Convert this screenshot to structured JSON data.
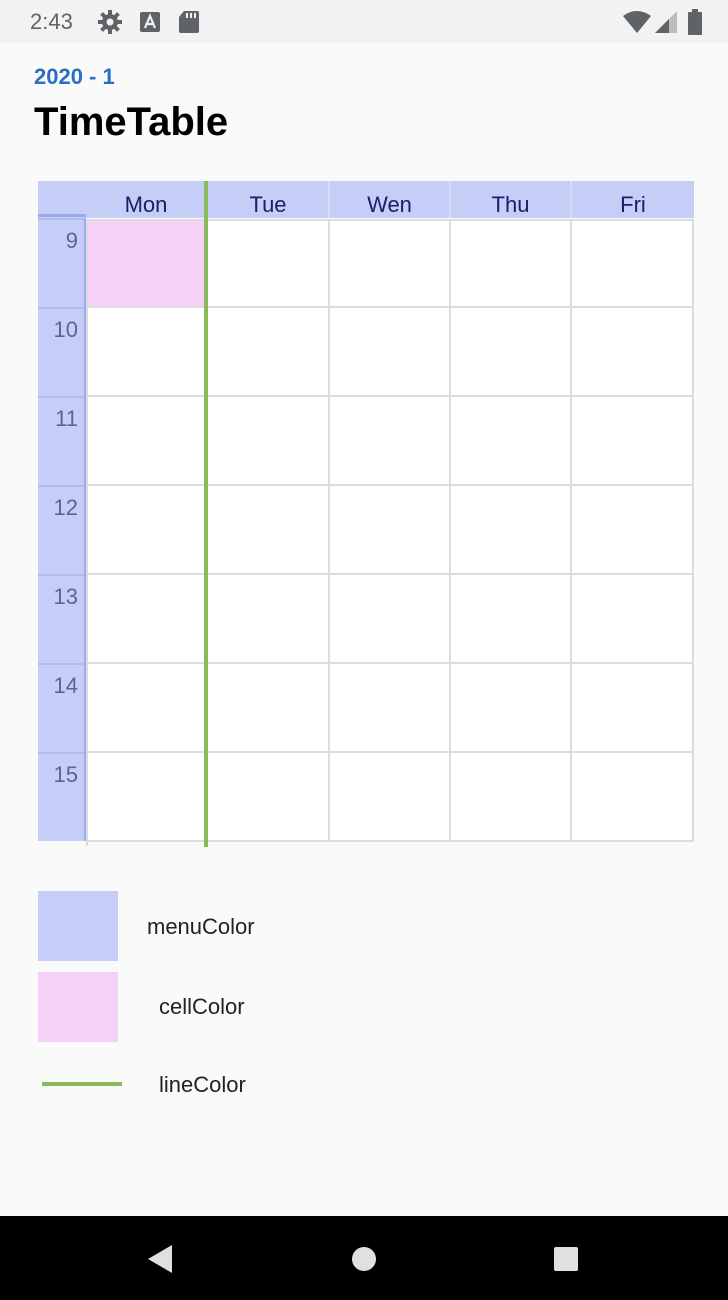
{
  "status_bar": {
    "time": "2:43",
    "left_icons": [
      "gear-icon",
      "text-a-icon",
      "sd-card-icon"
    ],
    "right_icons": [
      "wifi-icon",
      "cell-signal-icon",
      "battery-icon"
    ]
  },
  "header": {
    "semester": "2020 - 1",
    "title": "TimeTable"
  },
  "timetable": {
    "days": [
      "Mon",
      "Tue",
      "Wen",
      "Thu",
      "Fri"
    ],
    "hours": [
      "9",
      "10",
      "11",
      "12",
      "13",
      "14",
      "15"
    ],
    "filled_cells": [
      {
        "day": "Mon",
        "hour": "9"
      }
    ],
    "current_line_day": "Mon"
  },
  "legend": {
    "items": [
      {
        "label": "menuColor",
        "type": "swatch"
      },
      {
        "label": "cellColor",
        "type": "swatch"
      },
      {
        "label": "lineColor",
        "type": "line"
      }
    ]
  },
  "colors": {
    "menu": "#c5cef7",
    "cell": "#f5d1f8",
    "line": "#8aba5a",
    "semester_text": "#2a6fc0"
  },
  "nav_bar": {
    "buttons": [
      "back-icon",
      "home-icon",
      "recents-icon"
    ]
  }
}
